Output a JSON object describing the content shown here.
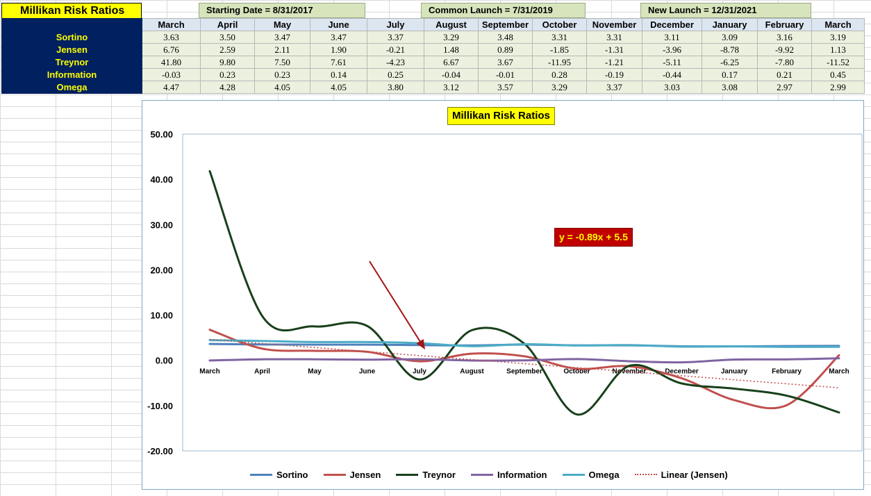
{
  "sheet": {
    "title": "Millikan Risk Ratios",
    "banners": [
      {
        "label": "Starting Date = 8/31/2017"
      },
      {
        "label": "Common Launch = 7/31/2019"
      },
      {
        "label": "New Launch = 12/31/2021"
      }
    ],
    "months": [
      "March",
      "April",
      "May",
      "June",
      "July",
      "August",
      "September",
      "October",
      "November",
      "December",
      "January",
      "February",
      "March"
    ],
    "rows": [
      {
        "label": "Sortino",
        "values": [
          "3.63",
          "3.50",
          "3.47",
          "3.47",
          "3.37",
          "3.29",
          "3.48",
          "3.31",
          "3.31",
          "3.11",
          "3.09",
          "3.16",
          "3.19"
        ]
      },
      {
        "label": "Jensen",
        "values": [
          "6.76",
          "2.59",
          "2.11",
          "1.90",
          "-0.21",
          "1.48",
          "0.89",
          "-1.85",
          "-1.31",
          "-3.96",
          "-8.78",
          "-9.92",
          "1.13"
        ]
      },
      {
        "label": "Treynor",
        "values": [
          "41.80",
          "9.80",
          "7.50",
          "7.61",
          "-4.23",
          "6.67",
          "3.67",
          "-11.95",
          "-1.21",
          "-5.11",
          "-6.25",
          "-7.80",
          "-11.52"
        ]
      },
      {
        "label": "Information",
        "values": [
          "-0.03",
          "0.23",
          "0.23",
          "0.14",
          "0.25",
          "-0.04",
          "-0.01",
          "0.28",
          "-0.19",
          "-0.44",
          "0.17",
          "0.21",
          "0.45"
        ]
      },
      {
        "label": "Omega",
        "values": [
          "4.47",
          "4.28",
          "4.05",
          "4.05",
          "3.80",
          "3.12",
          "3.57",
          "3.29",
          "3.37",
          "3.03",
          "3.08",
          "2.97",
          "2.99"
        ]
      }
    ]
  },
  "chart_data": {
    "type": "line",
    "title": "Millikan Risk Ratios",
    "categories": [
      "March",
      "April",
      "May",
      "June",
      "July",
      "August",
      "September",
      "October",
      "November",
      "December",
      "January",
      "February",
      "March"
    ],
    "ylim": [
      -20,
      50
    ],
    "yticks": [
      "50.00",
      "40.00",
      "30.00",
      "20.00",
      "10.00",
      "0.00",
      "-10.00",
      "-20.00"
    ],
    "ytick_values": [
      50,
      40,
      30,
      20,
      10,
      0,
      -10,
      -20
    ],
    "grid": false,
    "legend_position": "bottom",
    "series": [
      {
        "name": "Sortino",
        "color": "#4f81bd",
        "values": [
          3.63,
          3.5,
          3.47,
          3.47,
          3.37,
          3.29,
          3.48,
          3.31,
          3.31,
          3.11,
          3.09,
          3.16,
          3.19
        ]
      },
      {
        "name": "Jensen",
        "color": "#c0504d",
        "values": [
          6.76,
          2.59,
          2.11,
          1.9,
          -0.21,
          1.48,
          0.89,
          -1.85,
          -1.31,
          -3.96,
          -8.78,
          -9.92,
          1.13
        ]
      },
      {
        "name": "Treynor",
        "color": "#17401a",
        "values": [
          41.8,
          9.8,
          7.5,
          7.61,
          -4.23,
          6.67,
          3.67,
          -11.95,
          -1.21,
          -5.11,
          -6.25,
          -7.8,
          -11.52
        ]
      },
      {
        "name": "Information",
        "color": "#8064a2",
        "values": [
          -0.03,
          0.23,
          0.23,
          0.14,
          0.25,
          -0.04,
          -0.01,
          0.28,
          -0.19,
          -0.44,
          0.17,
          0.21,
          0.45
        ]
      },
      {
        "name": "Omega",
        "color": "#4bacc6",
        "values": [
          4.47,
          4.28,
          4.05,
          4.05,
          3.8,
          3.12,
          3.57,
          3.29,
          3.37,
          3.03,
          3.08,
          2.97,
          2.99
        ]
      }
    ],
    "trendline": {
      "name": "Linear (Jensen)",
      "color": "#c0504d",
      "slope": -0.89,
      "intercept": 5.5,
      "equation": "y = -0.89x + 5.5"
    },
    "annotation_arrow": {
      "color": "#a31515",
      "points_to": "July"
    }
  }
}
